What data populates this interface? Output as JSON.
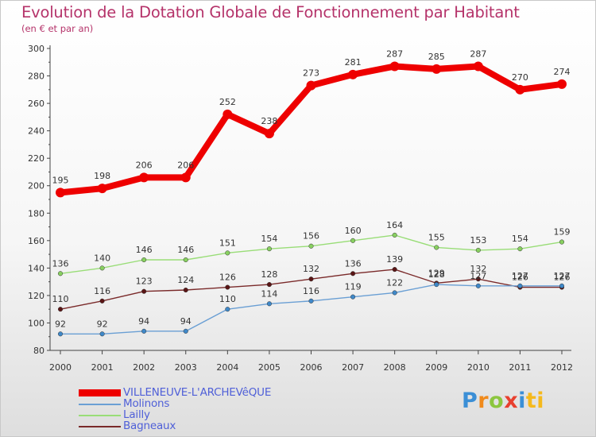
{
  "header": {
    "title": "Evolution de la Dotation Globale de Fonctionnement par Habitant",
    "subtitle": "(en € et par an)"
  },
  "logo": {
    "text": "Proxiti",
    "parts": [
      "P",
      "r",
      "o",
      "x",
      "i",
      "ti"
    ]
  },
  "colors": {
    "title": "#b5336a",
    "legend_text": "#5060d8",
    "axis": "#444444"
  },
  "chart_data": {
    "type": "line",
    "title": "Evolution de la Dotation Globale de Fonctionnement par Habitant",
    "subtitle": "(en € et par an)",
    "x": [
      "2000",
      "2001",
      "2002",
      "2003",
      "2004",
      "2005",
      "2006",
      "2007",
      "2008",
      "2009",
      "2010",
      "2011",
      "2012"
    ],
    "ylim": [
      80,
      300
    ],
    "yticks": [
      80,
      100,
      120,
      140,
      160,
      180,
      200,
      220,
      240,
      260,
      280,
      300
    ],
    "grid": false,
    "legend_position": "bottom-left",
    "series": [
      {
        "name": "VILLENEUVE-L'ARCHEVêQUE",
        "color": "#ee0000",
        "values": [
          195,
          198,
          206,
          206,
          252,
          238,
          273,
          281,
          287,
          285,
          287,
          270,
          274
        ]
      },
      {
        "name": "Molinons",
        "color": "#6a9fd4",
        "values": [
          92,
          92,
          94,
          94,
          110,
          114,
          116,
          119,
          122,
          128,
          127,
          127,
          127
        ]
      },
      {
        "name": "Lailly",
        "color": "#99dd77",
        "values": [
          136,
          140,
          146,
          146,
          151,
          154,
          156,
          160,
          164,
          155,
          153,
          154,
          159
        ]
      },
      {
        "name": "Bagneaux",
        "color": "#7a2a2a",
        "values": [
          110,
          116,
          123,
          124,
          126,
          128,
          132,
          136,
          139,
          129,
          132,
          126,
          126
        ]
      }
    ]
  }
}
